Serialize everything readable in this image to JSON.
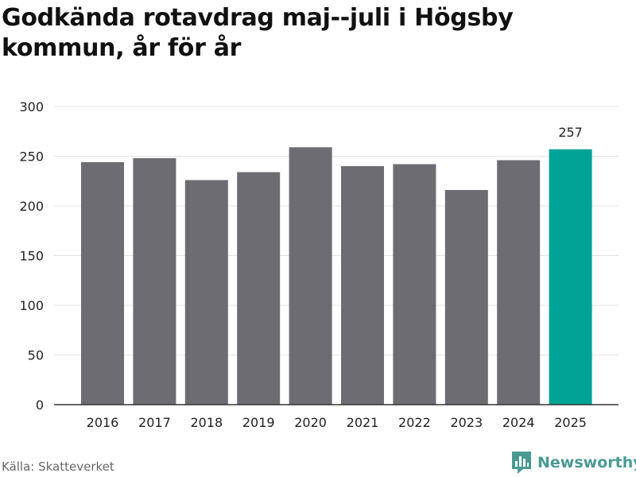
{
  "title": "Godkända rotavdrag maj--juli i Högsby kommun, år för år",
  "source": "Källa: Skatteverket",
  "brand": {
    "name": "Newsworthy",
    "icon": "newsworthy-logo-icon"
  },
  "colors": {
    "bar": "#6d6c72",
    "highlight": "#00a396",
    "grid": "#e3e3e3",
    "axis": "#333333",
    "text": "#222222",
    "brand": "#4a9a92"
  },
  "chart_data": {
    "type": "bar",
    "title": "Godkända rotavdrag maj--juli i Högsby kommun, år för år",
    "xlabel": "",
    "ylabel": "",
    "categories": [
      "2016",
      "2017",
      "2018",
      "2019",
      "2020",
      "2021",
      "2022",
      "2023",
      "2024",
      "2025"
    ],
    "values": [
      244,
      248,
      226,
      234,
      259,
      240,
      242,
      216,
      246,
      257
    ],
    "ylim": [
      0,
      300
    ],
    "yticks": [
      0,
      50,
      100,
      150,
      200,
      250,
      300
    ],
    "grid": true,
    "highlight_index": 9,
    "data_labels": [
      {
        "index": 9,
        "text": "257"
      }
    ]
  }
}
